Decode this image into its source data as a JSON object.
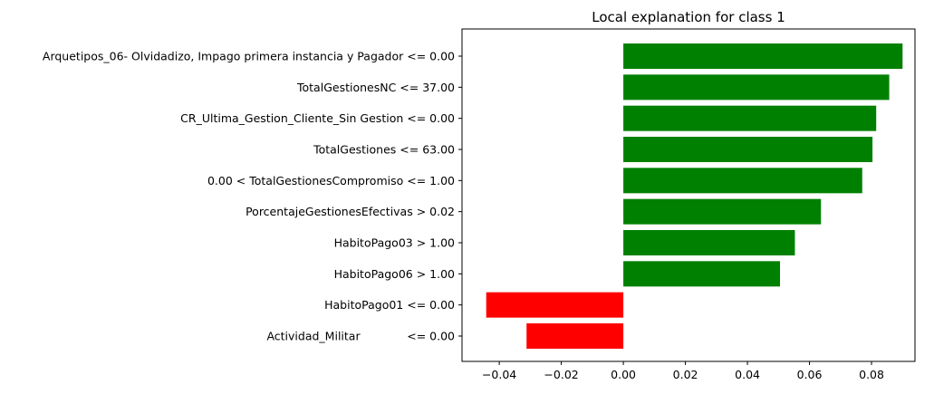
{
  "chart_data": {
    "type": "bar",
    "orientation": "horizontal",
    "title": "Local explanation for class 1",
    "xlabel": "",
    "ylabel": "",
    "xlim": [
      -0.052,
      0.094
    ],
    "grid": false,
    "legend": "none",
    "categories": [
      "Arquetipos_06- Olvidadizo, Impago primera instancia y Pagador <= 0.00",
      "TotalGestionesNC <= 37.00",
      "CR_Ultima_Gestion_Cliente_Sin Gestion <= 0.00",
      "TotalGestiones <= 63.00",
      "0.00 < TotalGestionesCompromiso <= 1.00",
      "PorcentajeGestionesEfectivas > 0.02",
      "HabitoPago03 > 1.00",
      "HabitoPago06 > 1.00",
      "HabitoPago01 <= 0.00",
      "Actividad_Militar             <= 0.00"
    ],
    "values": [
      0.09,
      0.0857,
      0.0815,
      0.0803,
      0.077,
      0.0637,
      0.0553,
      0.0505,
      -0.0442,
      -0.0312
    ],
    "x_ticks": [
      -0.04,
      -0.02,
      0.0,
      0.02,
      0.04,
      0.06,
      0.08
    ],
    "x_tick_labels": [
      "−0.04",
      "−0.02",
      "0.00",
      "0.02",
      "0.04",
      "0.06",
      "0.08"
    ],
    "colors": {
      "positive": "#008000",
      "negative": "#ff0000",
      "axis": "#000000"
    }
  }
}
